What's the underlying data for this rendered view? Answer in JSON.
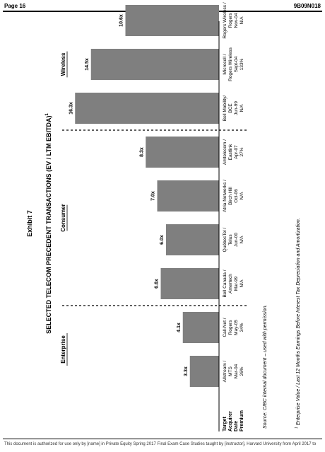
{
  "page": {
    "page_label": "Page 16",
    "doc_code": "9B09N018",
    "footer_notice": "This document is authorized for use only by [name] in Private Equity Spring 2017 Final Exam Case Studies taught by [instructor], Harvard University from April 2017 to"
  },
  "chart_data": {
    "type": "bar",
    "exhibit": "Exhibit 7",
    "title": "SELECTED TELECOM PRECEDENT TRANSACTIONS (EV / LTM EBITDA)",
    "title_superscript": "1",
    "row_labels": [
      "Target",
      "Acquirer",
      "Date",
      "Premium"
    ],
    "categories": [
      {
        "target": "Allstream /",
        "acquirer": "MTS",
        "date": "Mar-04",
        "premium": "26%"
      },
      {
        "target": "Call-Net /",
        "acquirer": "Rogers",
        "date": "May-05",
        "premium": "34%"
      },
      {
        "target": "Bell Canada /",
        "acquirer": "Amertech",
        "date": "Mar-99",
        "premium": "N/A"
      },
      {
        "target": "QuébecTel /",
        "acquirer": "Telus",
        "date": "Jun-00",
        "premium": "N/A"
      },
      {
        "target": "Atria Networks /",
        "acquirer": "Birch Hill",
        "date": "Oct-06",
        "premium": "N/A"
      },
      {
        "target": "Amtelecom /",
        "acquirer": "Eastlink",
        "date": "Apr-07",
        "premium": "27%"
      },
      {
        "target": "Bell Mobility/",
        "acquirer": "BCE",
        "date": "Jun-99",
        "premium": "N/A"
      },
      {
        "target": "Microcell /",
        "acquirer": "Rogers Wireless",
        "date": "Sept-04",
        "premium": "133%"
      },
      {
        "target": "Rogers Wireless /",
        "acquirer": "Rogers",
        "date": "Nov-04",
        "premium": "N/A"
      }
    ],
    "values": [
      3.3,
      4.1,
      6.6,
      6.0,
      7.0,
      8.3,
      16.3,
      14.5,
      10.6
    ],
    "value_labels": [
      "3.3x",
      "4.1x",
      "6.6x",
      "6.0x",
      "7.0x",
      "8.3x",
      "16.3x",
      "14.5x",
      "10.6x"
    ],
    "groups": [
      {
        "name": "Enterprise",
        "start": 0,
        "end": 1
      },
      {
        "name": "Consumer",
        "start": 2,
        "end": 5
      },
      {
        "name": "Wireless",
        "start": 6,
        "end": 8
      }
    ],
    "ylim": [
      0,
      18
    ],
    "bar_color": "#7f7f7f",
    "source": "Source: CIBC internal document – used with permission.",
    "footnote_marker": "1",
    "footnote": "Enterprise Value / Last 12 Months Earnings Before Interest Tax Depreciation and Amortization."
  }
}
